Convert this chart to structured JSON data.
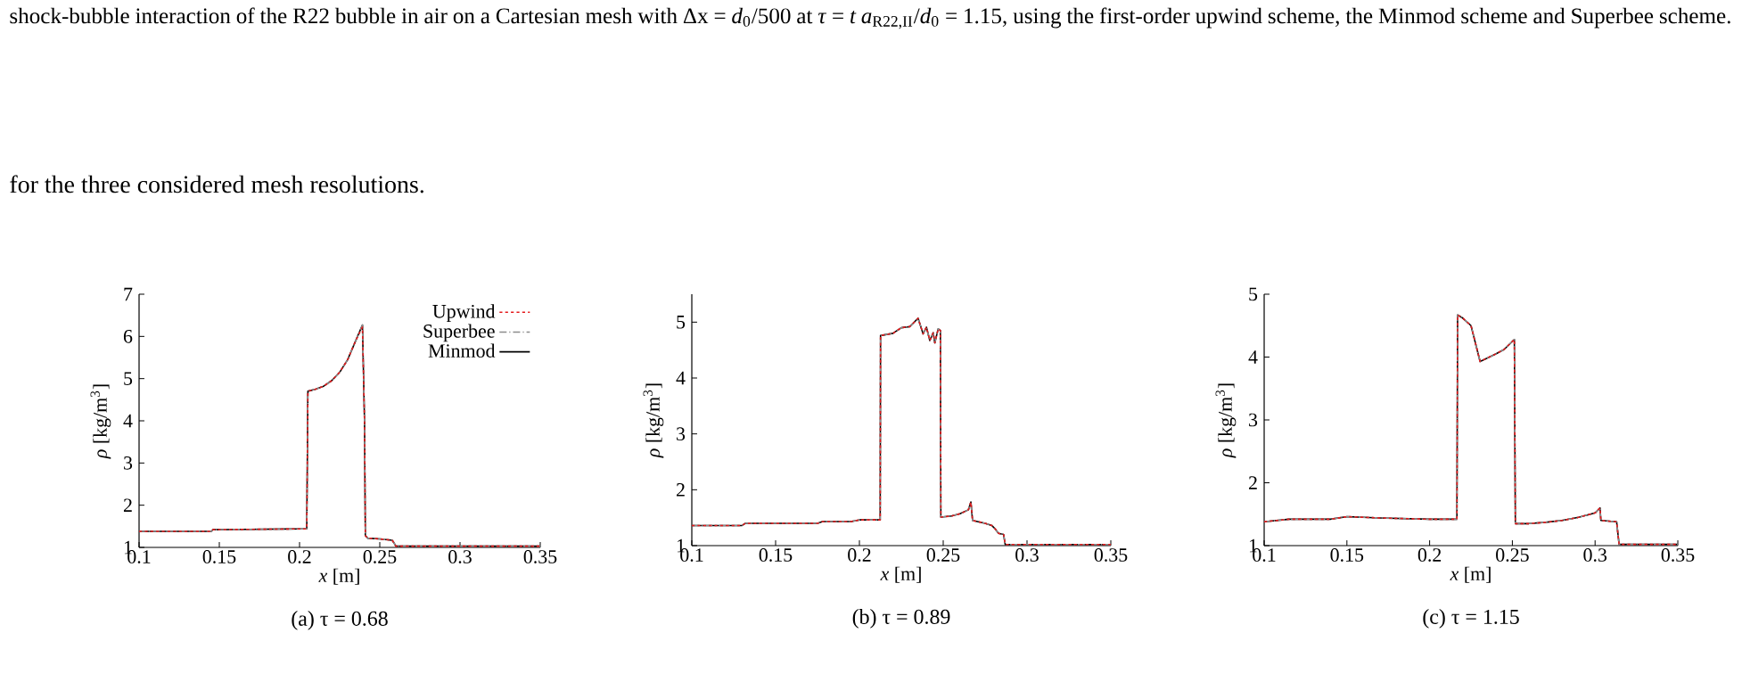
{
  "chart_data": [
    {
      "type": "line",
      "title": "(a) τ = 0.68",
      "xlabel": "*x* [m]",
      "ylabel": "*ρ* [kg/m$^{3}$]",
      "annotations": [
        "shock-bubble interaction of the R22 bubble in air on a Cartesian mesh with Δx = *d*$_{0}$/500 at *τ* = *t a*$_{R22,II}$/*d*$_{0}$ = 1.15, using the first-order upwind scheme, the Minmod scheme and Superbee scheme.",
        "for the three considered mesh resolutions."
      ],
      "xlim": [
        0.1,
        0.35
      ],
      "xticks": [
        0.1,
        0.15,
        0.2,
        0.25,
        0.3,
        0.35
      ],
      "ylim": [
        1,
        7
      ],
      "yticks": [
        1,
        2,
        3,
        4,
        5,
        6,
        7
      ],
      "legend": "top right",
      "x": [
        0.1,
        0.145,
        0.146,
        0.2045,
        0.2052,
        0.21,
        0.215,
        0.22,
        0.225,
        0.23,
        0.235,
        0.2392,
        0.2405,
        0.241,
        0.2425,
        0.25,
        0.2577,
        0.259,
        0.26,
        0.35
      ],
      "series": [
        {
          "name": "Upwind",
          "color": "#e41a1c",
          "line_style": "dotted",
          "values": [
            1.38,
            1.38,
            1.42,
            1.44,
            4.7,
            4.75,
            4.82,
            4.95,
            5.15,
            5.45,
            5.9,
            6.22,
            3.97,
            1.28,
            1.22,
            1.2,
            1.17,
            1.1,
            1.03,
            1.03
          ]
        },
        {
          "name": "Superbee",
          "color": "#8c8c8c",
          "line_style": "dashed",
          "values": [
            1.38,
            1.38,
            1.42,
            1.44,
            4.7,
            4.75,
            4.82,
            4.95,
            5.15,
            5.45,
            5.9,
            6.27,
            3.97,
            1.28,
            1.22,
            1.2,
            1.17,
            1.1,
            1.03,
            1.03
          ]
        },
        {
          "name": "Minmod",
          "color": "#000000",
          "line_style": "solid",
          "values": [
            1.38,
            1.38,
            1.42,
            1.44,
            4.7,
            4.75,
            4.82,
            4.95,
            5.15,
            5.45,
            5.9,
            6.27,
            3.97,
            1.28,
            1.22,
            1.2,
            1.17,
            1.1,
            1.03,
            1.03
          ]
        }
      ]
    },
    {
      "type": "line",
      "title": "(b) τ = 0.89",
      "xlabel": "*x* [m]",
      "ylabel": "*ρ* [kg/m$^{3}$]",
      "xlim": [
        0.1,
        0.35
      ],
      "xticks": [
        0.1,
        0.15,
        0.2,
        0.25,
        0.3,
        0.35
      ],
      "ylim": [
        1,
        5.5
      ],
      "yticks": [
        1,
        2,
        3,
        4,
        5
      ],
      "x": [
        0.1,
        0.13,
        0.132,
        0.175,
        0.178,
        0.195,
        0.2,
        0.2124,
        0.2126,
        0.22,
        0.225,
        0.23,
        0.235,
        0.238,
        0.24,
        0.242,
        0.244,
        0.245,
        0.247,
        0.2483,
        0.2486,
        0.255,
        0.26,
        0.265,
        0.2665,
        0.2675,
        0.275,
        0.279,
        0.281,
        0.283,
        0.286,
        0.287,
        0.35
      ],
      "series": [
        {
          "color": "#e41a1c",
          "line_style": "dotted",
          "values": [
            1.36,
            1.36,
            1.4,
            1.4,
            1.43,
            1.43,
            1.46,
            1.46,
            4.76,
            4.8,
            4.9,
            4.92,
            5.07,
            4.79,
            4.91,
            4.67,
            4.81,
            4.63,
            4.88,
            4.85,
            1.51,
            1.53,
            1.57,
            1.64,
            1.78,
            1.45,
            1.4,
            1.36,
            1.3,
            1.22,
            1.2,
            1.02,
            1.02
          ]
        },
        {
          "color": "#8c8c8c",
          "line_style": "dashed",
          "values": [
            1.36,
            1.36,
            1.4,
            1.4,
            1.43,
            1.43,
            1.46,
            1.46,
            4.76,
            4.8,
            4.9,
            4.92,
            5.07,
            4.79,
            4.91,
            4.67,
            4.81,
            4.63,
            4.88,
            4.85,
            1.51,
            1.53,
            1.57,
            1.64,
            1.78,
            1.45,
            1.4,
            1.36,
            1.3,
            1.22,
            1.2,
            1.02,
            1.02
          ]
        },
        {
          "color": "#000000",
          "line_style": "solid",
          "values": [
            1.36,
            1.36,
            1.4,
            1.4,
            1.43,
            1.43,
            1.46,
            1.46,
            4.76,
            4.8,
            4.9,
            4.92,
            5.07,
            4.79,
            4.91,
            4.67,
            4.81,
            4.63,
            4.88,
            4.85,
            1.51,
            1.53,
            1.57,
            1.64,
            1.78,
            1.45,
            1.4,
            1.36,
            1.3,
            1.22,
            1.2,
            1.02,
            1.02
          ]
        }
      ]
    },
    {
      "type": "line",
      "title": "(c) τ = 1.15",
      "xlabel": "*x* [m]",
      "ylabel": "*ρ* [kg/m$^{3}$]",
      "xlim": [
        0.1,
        0.35
      ],
      "xticks": [
        0.1,
        0.15,
        0.2,
        0.25,
        0.3,
        0.35
      ],
      "ylim": [
        1,
        5
      ],
      "yticks": [
        1,
        2,
        3,
        4,
        5
      ],
      "x": [
        0.1,
        0.115,
        0.14,
        0.15,
        0.17,
        0.2,
        0.2165,
        0.2169,
        0.22,
        0.225,
        0.2305,
        0.24,
        0.245,
        0.2512,
        0.2518,
        0.26,
        0.27,
        0.28,
        0.29,
        0.3,
        0.303,
        0.3035,
        0.313,
        0.3145,
        0.35
      ],
      "series": [
        {
          "color": "#e41a1c",
          "line_style": "dotted",
          "values": [
            1.38,
            1.42,
            1.42,
            1.46,
            1.44,
            1.42,
            1.42,
            4.67,
            4.62,
            4.5,
            3.93,
            4.05,
            4.12,
            4.28,
            1.35,
            1.35,
            1.37,
            1.4,
            1.45,
            1.52,
            1.6,
            1.4,
            1.38,
            1.02,
            1.02
          ]
        },
        {
          "color": "#8c8c8c",
          "line_style": "dashed",
          "values": [
            1.38,
            1.42,
            1.42,
            1.46,
            1.44,
            1.42,
            1.42,
            4.67,
            4.62,
            4.5,
            3.93,
            4.05,
            4.12,
            4.28,
            1.35,
            1.35,
            1.37,
            1.4,
            1.45,
            1.52,
            1.6,
            1.4,
            1.38,
            1.02,
            1.02
          ]
        },
        {
          "color": "#000000",
          "line_style": "solid",
          "values": [
            1.38,
            1.42,
            1.42,
            1.46,
            1.44,
            1.42,
            1.42,
            4.67,
            4.62,
            4.5,
            3.93,
            4.05,
            4.12,
            4.28,
            1.35,
            1.35,
            1.37,
            1.4,
            1.45,
            1.52,
            1.6,
            1.4,
            1.38,
            1.02,
            1.02
          ]
        }
      ]
    }
  ]
}
